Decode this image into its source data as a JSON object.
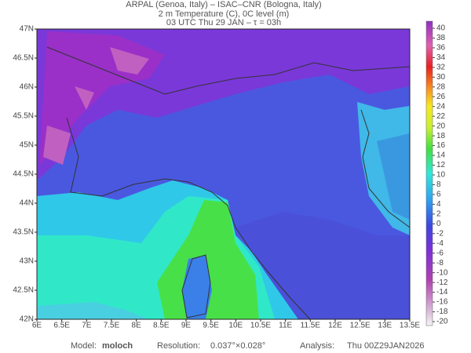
{
  "header": {
    "lines": [
      "ARPAL (Genoa, Italy)  –  ISAC–CNR (Bologna, Italy)",
      "2 m Temperature (C), 0C level (m)",
      "03 UTC Thu 29 JAN  –  τ = 03h"
    ]
  },
  "map": {
    "xticks": [
      {
        "value": 6,
        "label": "6E"
      },
      {
        "value": 6.5,
        "label": "6.5E"
      },
      {
        "value": 7,
        "label": "7E"
      },
      {
        "value": 7.5,
        "label": "7.5E"
      },
      {
        "value": 8,
        "label": "8E"
      },
      {
        "value": 8.5,
        "label": "8.5E"
      },
      {
        "value": 9,
        "label": "9E"
      },
      {
        "value": 9.5,
        "label": "9.5E"
      },
      {
        "value": 10,
        "label": "10E"
      },
      {
        "value": 10.5,
        "label": "10.5E"
      },
      {
        "value": 11,
        "label": "11E"
      },
      {
        "value": 11.5,
        "label": "11.5E"
      },
      {
        "value": 12,
        "label": "12E"
      },
      {
        "value": 12.5,
        "label": "12.5E"
      },
      {
        "value": 13,
        "label": "13E"
      },
      {
        "value": 13.5,
        "label": "13.5E"
      }
    ],
    "yticks": [
      {
        "value": 47,
        "label": "47N"
      },
      {
        "value": 46.5,
        "label": "46.5N"
      },
      {
        "value": 46,
        "label": "46N"
      },
      {
        "value": 45.5,
        "label": "45.5N"
      },
      {
        "value": 45,
        "label": "45N"
      },
      {
        "value": 44.5,
        "label": "44.5N"
      },
      {
        "value": 44,
        "label": "44N"
      },
      {
        "value": 43.5,
        "label": "43.5N"
      },
      {
        "value": 43,
        "label": "43N"
      },
      {
        "value": 42.5,
        "label": "42.5N"
      },
      {
        "value": 42,
        "label": "42N"
      }
    ]
  },
  "colorbar": {
    "ticks": [
      40,
      38,
      36,
      34,
      32,
      30,
      28,
      26,
      24,
      22,
      20,
      18,
      16,
      14,
      12,
      10,
      8,
      6,
      4,
      2,
      0,
      -2,
      -4,
      -6,
      -8,
      -10,
      -12,
      -14,
      -16,
      -18,
      -20
    ]
  },
  "footer": {
    "model_label": "Model:",
    "model": "moloch",
    "resolution_label": "Resolution:",
    "resolution": "0.037°×0.028°",
    "analysis_label": "Analysis:",
    "analysis": "Thu 00Z29JAN2026"
  }
}
